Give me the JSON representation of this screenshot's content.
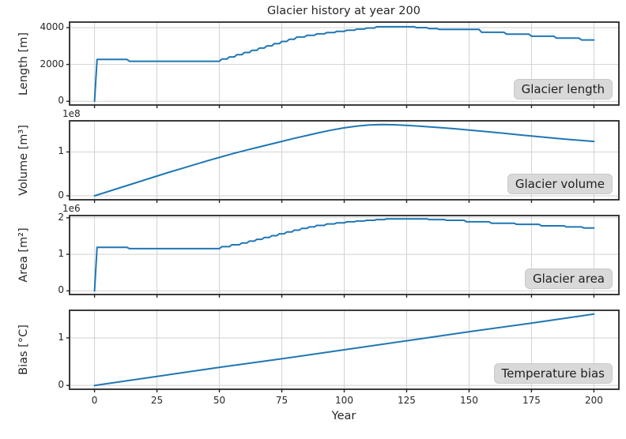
{
  "colors": {
    "line": "#1f77b4",
    "grid": "#d2d2d2",
    "spine": "#262626",
    "text": "#262626",
    "annotation_bg": "#d9d9d9"
  },
  "chart_data": {
    "type": "line",
    "title": "Glacier history at year 200",
    "xlabel": "Year",
    "grid": true,
    "legend_position": "none",
    "xlim": [
      -10,
      210
    ],
    "x_ticks": [
      0,
      25,
      50,
      75,
      100,
      125,
      150,
      175,
      200
    ],
    "panels": [
      {
        "name": "Glacier length",
        "annotation": "Glacier length",
        "ylabel": "Length [m]",
        "offset_text": "",
        "unit": "m",
        "y_ticks": [
          0,
          2000,
          4000
        ],
        "ylim": [
          -205,
          4300
        ],
        "points": [
          [
            0,
            0
          ],
          [
            1,
            2270
          ],
          [
            13,
            2270
          ],
          [
            14,
            2170
          ],
          [
            50,
            2170
          ],
          [
            51,
            2290
          ],
          [
            53,
            2290
          ],
          [
            54,
            2410
          ],
          [
            56,
            2410
          ],
          [
            57,
            2530
          ],
          [
            59,
            2530
          ],
          [
            60,
            2650
          ],
          [
            62,
            2650
          ],
          [
            63,
            2770
          ],
          [
            65,
            2770
          ],
          [
            66,
            2890
          ],
          [
            68,
            2890
          ],
          [
            69,
            3010
          ],
          [
            71,
            3010
          ],
          [
            72,
            3130
          ],
          [
            74,
            3130
          ],
          [
            75,
            3250
          ],
          [
            77,
            3250
          ],
          [
            78,
            3370
          ],
          [
            80,
            3370
          ],
          [
            81,
            3490
          ],
          [
            84,
            3490
          ],
          [
            85,
            3580
          ],
          [
            88,
            3580
          ],
          [
            89,
            3660
          ],
          [
            92,
            3660
          ],
          [
            93,
            3730
          ],
          [
            96,
            3730
          ],
          [
            97,
            3800
          ],
          [
            100,
            3800
          ],
          [
            101,
            3860
          ],
          [
            104,
            3860
          ],
          [
            105,
            3920
          ],
          [
            108,
            3920
          ],
          [
            109,
            3980
          ],
          [
            112,
            3980
          ],
          [
            113,
            4045
          ],
          [
            128,
            4045
          ],
          [
            129,
            4000
          ],
          [
            133,
            4000
          ],
          [
            134,
            3950
          ],
          [
            137,
            3950
          ],
          [
            138,
            3905
          ],
          [
            154,
            3905
          ],
          [
            155,
            3745
          ],
          [
            164,
            3745
          ],
          [
            165,
            3645
          ],
          [
            174,
            3645
          ],
          [
            175,
            3530
          ],
          [
            184,
            3530
          ],
          [
            185,
            3430
          ],
          [
            194,
            3430
          ],
          [
            195,
            3330
          ],
          [
            200,
            3330
          ]
        ]
      },
      {
        "name": "Glacier volume",
        "annotation": "Glacier volume",
        "ylabel": "Volume [m³]",
        "offset_text": "1e8",
        "unit": "1e8 m³",
        "y_ticks": [
          0,
          1
        ],
        "ylim": [
          -0.09,
          1.71
        ],
        "points": [
          [
            0,
            0
          ],
          [
            5,
            0.09
          ],
          [
            10,
            0.18
          ],
          [
            15,
            0.27
          ],
          [
            20,
            0.36
          ],
          [
            25,
            0.45
          ],
          [
            30,
            0.54
          ],
          [
            35,
            0.625
          ],
          [
            40,
            0.71
          ],
          [
            45,
            0.795
          ],
          [
            50,
            0.875
          ],
          [
            55,
            0.955
          ],
          [
            60,
            1.03
          ],
          [
            65,
            1.1
          ],
          [
            70,
            1.17
          ],
          [
            75,
            1.24
          ],
          [
            80,
            1.31
          ],
          [
            85,
            1.375
          ],
          [
            90,
            1.44
          ],
          [
            95,
            1.5
          ],
          [
            100,
            1.55
          ],
          [
            105,
            1.59
          ],
          [
            110,
            1.615
          ],
          [
            115,
            1.625
          ],
          [
            120,
            1.62
          ],
          [
            125,
            1.605
          ],
          [
            130,
            1.588
          ],
          [
            135,
            1.568
          ],
          [
            140,
            1.548
          ],
          [
            145,
            1.525
          ],
          [
            150,
            1.5
          ],
          [
            155,
            1.475
          ],
          [
            160,
            1.448
          ],
          [
            165,
            1.42
          ],
          [
            170,
            1.39
          ],
          [
            175,
            1.363
          ],
          [
            180,
            1.335
          ],
          [
            185,
            1.308
          ],
          [
            190,
            1.285
          ],
          [
            195,
            1.262
          ],
          [
            200,
            1.24
          ]
        ]
      },
      {
        "name": "Glacier area",
        "annotation": "Glacier area",
        "ylabel": "Area [m²]",
        "offset_text": "1e6",
        "unit": "1e6 m²",
        "y_ticks": [
          0,
          1,
          2
        ],
        "ylim": [
          -0.1,
          2.06
        ],
        "points": [
          [
            0,
            0
          ],
          [
            1,
            1.19
          ],
          [
            13,
            1.19
          ],
          [
            14,
            1.155
          ],
          [
            50,
            1.155
          ],
          [
            51,
            1.21
          ],
          [
            54,
            1.21
          ],
          [
            55,
            1.26
          ],
          [
            58,
            1.26
          ],
          [
            59,
            1.31
          ],
          [
            61,
            1.31
          ],
          [
            62,
            1.36
          ],
          [
            64,
            1.36
          ],
          [
            65,
            1.41
          ],
          [
            67,
            1.41
          ],
          [
            68,
            1.46
          ],
          [
            70,
            1.46
          ],
          [
            71,
            1.51
          ],
          [
            73,
            1.51
          ],
          [
            74,
            1.56
          ],
          [
            76,
            1.56
          ],
          [
            77,
            1.61
          ],
          [
            79,
            1.61
          ],
          [
            80,
            1.66
          ],
          [
            82,
            1.66
          ],
          [
            83,
            1.71
          ],
          [
            85,
            1.71
          ],
          [
            86,
            1.75
          ],
          [
            88,
            1.75
          ],
          [
            89,
            1.79
          ],
          [
            92,
            1.79
          ],
          [
            93,
            1.83
          ],
          [
            96,
            1.83
          ],
          [
            97,
            1.86
          ],
          [
            100,
            1.86
          ],
          [
            101,
            1.89
          ],
          [
            104,
            1.89
          ],
          [
            105,
            1.91
          ],
          [
            108,
            1.91
          ],
          [
            109,
            1.93
          ],
          [
            112,
            1.93
          ],
          [
            113,
            1.95
          ],
          [
            116,
            1.95
          ],
          [
            117,
            1.97
          ],
          [
            133,
            1.97
          ],
          [
            134,
            1.95
          ],
          [
            140,
            1.95
          ],
          [
            141,
            1.93
          ],
          [
            148,
            1.93
          ],
          [
            149,
            1.89
          ],
          [
            158,
            1.89
          ],
          [
            159,
            1.85
          ],
          [
            168,
            1.85
          ],
          [
            169,
            1.82
          ],
          [
            178,
            1.82
          ],
          [
            179,
            1.78
          ],
          [
            188,
            1.78
          ],
          [
            189,
            1.75
          ],
          [
            195,
            1.75
          ],
          [
            196,
            1.72
          ],
          [
            200,
            1.72
          ]
        ]
      },
      {
        "name": "Temperature bias",
        "annotation": "Temperature bias",
        "ylabel": "Bias [°C]",
        "offset_text": "",
        "unit": "°C",
        "y_ticks": [
          0,
          1
        ],
        "ylim": [
          -0.08,
          1.58
        ],
        "points": [
          [
            0,
            0
          ],
          [
            25,
            0.19
          ],
          [
            50,
            0.38
          ],
          [
            75,
            0.56
          ],
          [
            100,
            0.75
          ],
          [
            125,
            0.94
          ],
          [
            150,
            1.13
          ],
          [
            175,
            1.31
          ],
          [
            200,
            1.5
          ]
        ]
      }
    ]
  }
}
